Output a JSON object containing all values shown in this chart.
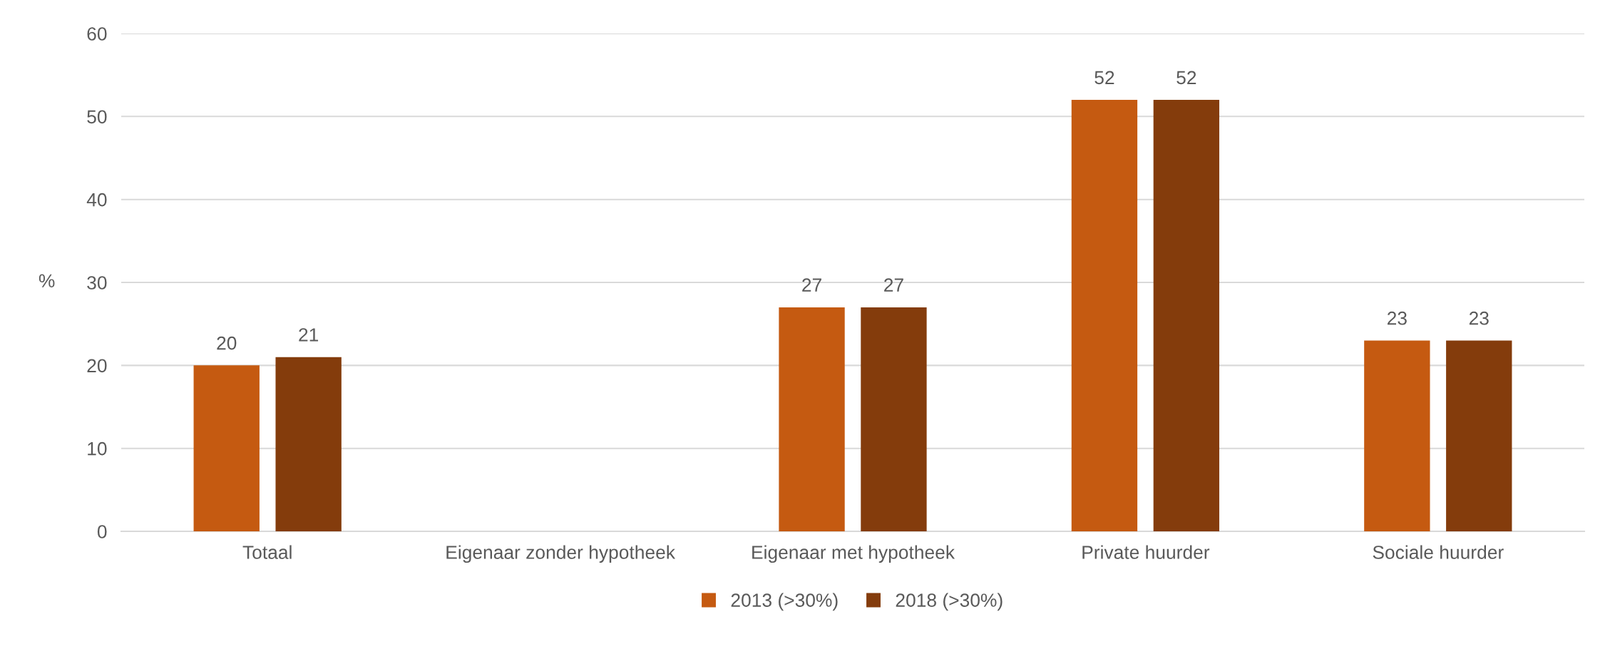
{
  "chart_data": {
    "type": "bar",
    "ylabel": "%",
    "categories": [
      "Totaal",
      "Eigenaar zonder hypotheek",
      "Eigenaar met hypotheek",
      "Private huurder",
      "Sociale huurder"
    ],
    "series": [
      {
        "name": "2013 (>30%)",
        "color": "#c55a11",
        "values": [
          20,
          null,
          27,
          52,
          23
        ]
      },
      {
        "name": "2018 (>30%)",
        "color": "#843c0c",
        "values": [
          21,
          null,
          27,
          52,
          23
        ]
      }
    ],
    "ylim": [
      0,
      60
    ],
    "yticks": [
      0,
      10,
      20,
      30,
      40,
      50,
      60
    ],
    "grid": "y",
    "legend": "bottom",
    "data_labels": true
  }
}
